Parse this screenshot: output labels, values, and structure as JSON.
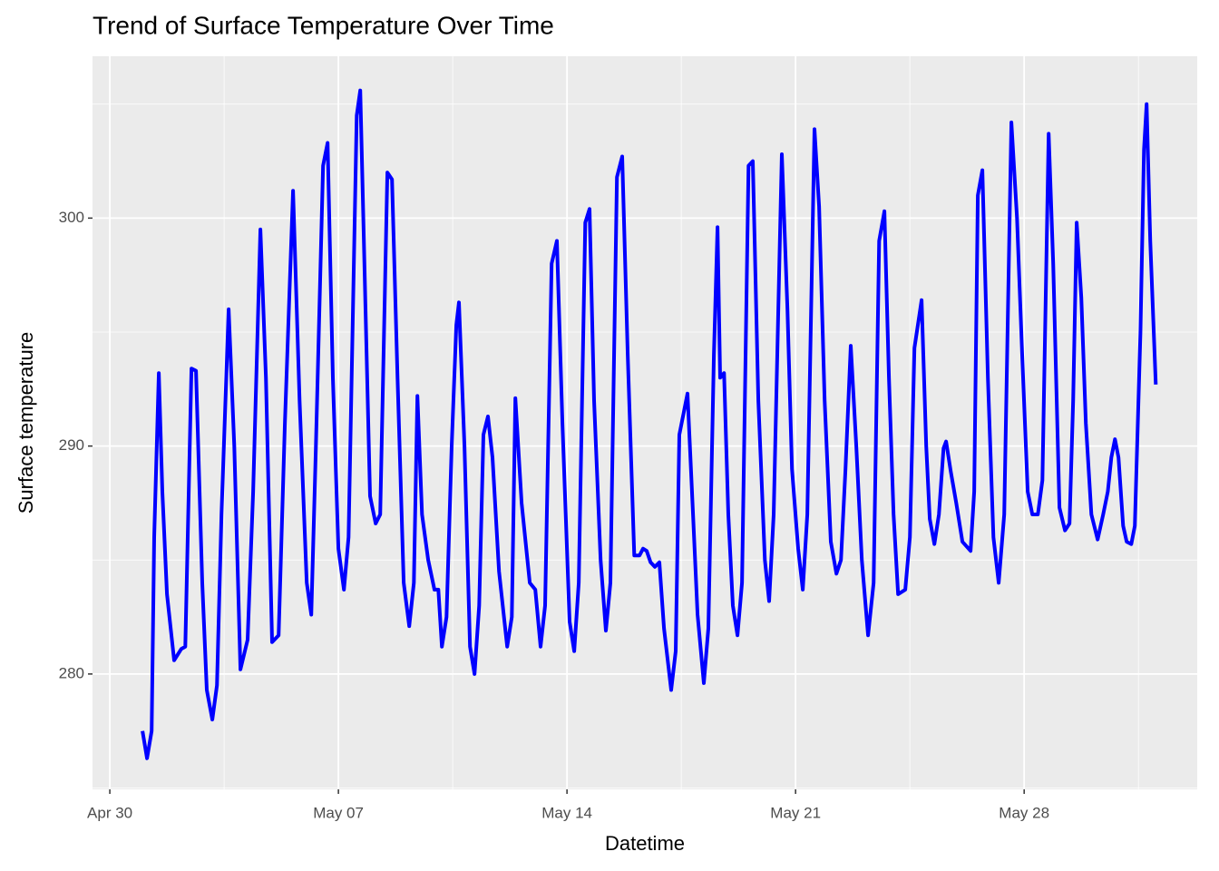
{
  "chart_data": {
    "type": "line",
    "title": "Trend of Surface Temperature Over Time",
    "x_label": "Datetime",
    "y_label": "Surface temperature",
    "xlim": [
      -0.53,
      33.3
    ],
    "ylim": [
      274.94,
      307.1
    ],
    "xticks": [
      {
        "value": 0,
        "label": "Apr 30"
      },
      {
        "value": 7,
        "label": "May 07"
      },
      {
        "value": 14,
        "label": "May 14"
      },
      {
        "value": 21,
        "label": "May 21"
      },
      {
        "value": 28,
        "label": "May 28"
      }
    ],
    "yticks": [
      280,
      290,
      300
    ],
    "grid": true,
    "series": [
      {
        "color": "#0000ff",
        "x": [
          1.0,
          1.14,
          1.28,
          1.36,
          1.5,
          1.61,
          1.75,
          1.97,
          2.19,
          2.31,
          2.5,
          2.64,
          2.83,
          2.97,
          3.14,
          3.28,
          3.42,
          3.64,
          3.81,
          4.0,
          4.22,
          4.39,
          4.61,
          4.78,
          4.97,
          5.17,
          5.36,
          5.61,
          5.81,
          6.03,
          6.17,
          6.31,
          6.53,
          6.67,
          6.83,
          7.0,
          7.17,
          7.31,
          7.56,
          7.67,
          7.83,
          7.97,
          8.14,
          8.28,
          8.5,
          8.64,
          8.81,
          9.0,
          9.17,
          9.31,
          9.42,
          9.56,
          9.75,
          9.94,
          10.06,
          10.17,
          10.31,
          10.47,
          10.61,
          10.69,
          10.86,
          11.03,
          11.17,
          11.31,
          11.44,
          11.58,
          11.72,
          11.92,
          12.17,
          12.31,
          12.42,
          12.61,
          12.86,
          13.03,
          13.19,
          13.33,
          13.53,
          13.69,
          13.86,
          14.08,
          14.22,
          14.36,
          14.56,
          14.69,
          14.83,
          15.03,
          15.19,
          15.33,
          15.53,
          15.69,
          15.86,
          16.06,
          16.22,
          16.33,
          16.44,
          16.56,
          16.69,
          16.83,
          16.97,
          17.19,
          17.33,
          17.44,
          17.69,
          17.86,
          18.0,
          18.19,
          18.33,
          18.5,
          18.61,
          18.69,
          18.81,
          18.94,
          19.08,
          19.22,
          19.36,
          19.56,
          19.69,
          19.86,
          20.06,
          20.19,
          20.33,
          20.58,
          20.75,
          20.89,
          21.08,
          21.22,
          21.36,
          21.58,
          21.72,
          21.89,
          22.08,
          22.25,
          22.39,
          22.53,
          22.69,
          22.86,
          23.03,
          23.22,
          23.39,
          23.56,
          23.72,
          23.86,
          24.0,
          24.14,
          24.36,
          24.5,
          24.64,
          24.86,
          25.0,
          25.11,
          25.25,
          25.39,
          25.53,
          25.61,
          25.75,
          25.92,
          26.11,
          26.36,
          26.47,
          26.58,
          26.72,
          26.89,
          27.06,
          27.22,
          27.39,
          27.61,
          27.78,
          27.94,
          28.11,
          28.25,
          28.42,
          28.56,
          28.75,
          28.89,
          29.08,
          29.25,
          29.39,
          29.5,
          29.61,
          29.75,
          29.89,
          30.06,
          30.25,
          30.42,
          30.56,
          30.67,
          30.78,
          30.89,
          31.03,
          31.14,
          31.28,
          31.39,
          31.56,
          31.67,
          31.75,
          31.86,
          32.03
        ],
        "values": [
          277.5,
          276.3,
          277.5,
          286,
          293.2,
          288,
          283.5,
          280.6,
          281.1,
          281.2,
          293.4,
          293.3,
          284,
          279.3,
          278,
          279.5,
          287,
          296,
          290,
          280.2,
          281.5,
          288,
          299.5,
          293,
          281.4,
          281.7,
          291,
          301.2,
          292,
          284,
          282.6,
          290,
          302.3,
          303.3,
          293,
          285.5,
          283.7,
          286,
          304.5,
          305.6,
          296,
          287.8,
          286.6,
          287,
          302,
          301.7,
          293,
          284,
          282.1,
          284,
          292.2,
          287,
          285,
          283.7,
          283.7,
          281.2,
          282.5,
          290,
          295.3,
          296.3,
          290,
          281.2,
          280,
          283,
          290.5,
          291.3,
          289.5,
          284.5,
          281.2,
          282.5,
          292.1,
          287.5,
          284,
          283.7,
          281.2,
          283,
          298,
          299,
          291,
          282.3,
          281,
          284,
          299.8,
          300.4,
          292,
          285,
          281.9,
          284,
          301.8,
          302.7,
          294,
          285.2,
          285.2,
          285.5,
          285.4,
          284.9,
          284.7,
          284.9,
          282,
          279.3,
          281,
          290.5,
          292.3,
          287,
          282.6,
          279.6,
          282,
          294,
          299.6,
          293,
          293.2,
          287,
          283,
          281.7,
          284,
          302.3,
          302.5,
          292,
          285,
          283.2,
          287,
          302.8,
          296,
          289,
          285.5,
          283.7,
          287,
          303.9,
          300.5,
          292,
          285.8,
          284.4,
          285,
          289,
          294.4,
          290,
          285,
          281.7,
          284,
          299,
          300.3,
          293,
          287,
          283.5,
          283.7,
          286,
          294.3,
          296.4,
          290,
          286.8,
          285.7,
          287,
          289.9,
          290.2,
          288.9,
          287.5,
          285.8,
          285.4,
          288,
          301,
          302.1,
          293,
          286,
          284,
          287,
          304.2,
          300,
          294,
          288,
          287,
          287,
          288.5,
          303.7,
          298,
          287.3,
          286.3,
          286.6,
          292,
          299.8,
          296.5,
          291,
          287,
          285.9,
          287,
          288,
          289.5,
          290.3,
          289.5,
          286.5,
          285.8,
          285.7,
          286.5,
          295,
          303,
          305,
          299,
          292.7
        ]
      }
    ]
  }
}
